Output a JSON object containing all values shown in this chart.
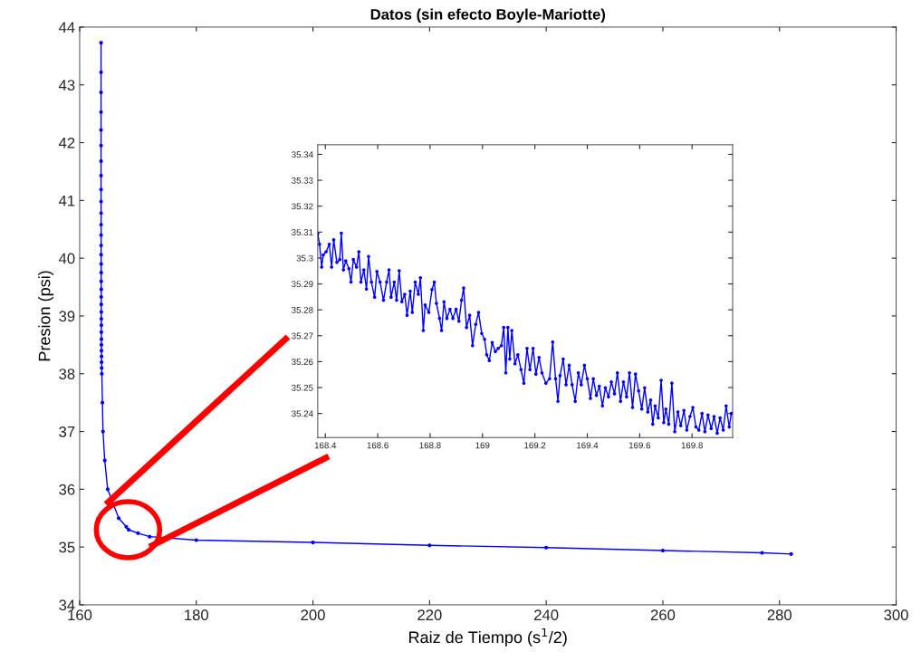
{
  "chart_data": [
    {
      "type": "line",
      "title": "Datos (sin efecto Boyle-Mariotte)",
      "xlabel": "Raiz de Tiempo (s$^{1}$/2)",
      "ylabel": "Presion (psi)",
      "xlim": [
        160,
        300
      ],
      "ylim": [
        34,
        44
      ],
      "xticks": [
        160,
        180,
        200,
        220,
        240,
        260,
        280,
        300
      ],
      "yticks": [
        34,
        35,
        36,
        37,
        38,
        39,
        40,
        41,
        42,
        43,
        44
      ],
      "grid": false,
      "marker": "circle",
      "line_style": "solid",
      "series": [
        {
          "color": "#0000ff",
          "x": [
            163.67,
            163.67,
            163.67,
            163.67,
            163.67,
            163.67,
            163.67,
            163.67,
            163.67,
            163.67,
            163.68,
            163.68,
            163.68,
            163.68,
            163.68,
            163.69,
            163.69,
            163.69,
            163.7,
            163.7,
            163.7,
            163.71,
            163.71,
            163.72,
            163.72,
            163.73,
            163.73,
            163.74,
            163.75,
            163.76,
            163.77,
            163.8,
            163.9,
            164.0,
            164.3,
            164.8,
            166.7,
            168.0,
            168.4,
            170,
            172,
            180,
            200,
            220,
            240,
            260,
            277,
            282
          ],
          "values": [
            43.73,
            43.22,
            42.87,
            42.53,
            42.22,
            41.95,
            41.68,
            41.43,
            41.19,
            40.98,
            40.78,
            40.58,
            40.4,
            40.22,
            40.06,
            39.9,
            39.75,
            39.6,
            39.46,
            39.33,
            39.2,
            39.07,
            38.95,
            38.84,
            38.72,
            38.6,
            38.5,
            38.4,
            38.3,
            38.2,
            38.1,
            38.0,
            37.5,
            37.0,
            36.5,
            36.0,
            35.5,
            35.35,
            35.3,
            35.24,
            35.18,
            35.12,
            35.08,
            35.03,
            34.99,
            34.94,
            34.9,
            34.88
          ]
        }
      ]
    },
    {
      "type": "line",
      "xlim": [
        168.371,
        169.955
      ],
      "ylim": [
        35.2307,
        35.3437
      ],
      "xticks": [
        168.4,
        168.6,
        168.8,
        169,
        169.2,
        169.4,
        169.6,
        169.8
      ],
      "yticks": [
        35.24,
        35.25,
        35.26,
        35.27,
        35.28,
        35.29,
        35.3,
        35.31,
        35.32,
        35.33,
        35.34
      ],
      "grid": false,
      "marker": "circle",
      "line_style": "solid",
      "series": [
        {
          "color": "#0000ff",
          "x": [
            168.371,
            168.378,
            168.386,
            168.392,
            168.403,
            168.415,
            168.424,
            168.432,
            168.444,
            168.455,
            168.461,
            168.469,
            168.478,
            168.49,
            168.498,
            168.507,
            168.519,
            168.528,
            168.536,
            168.547,
            168.557,
            168.565,
            168.576,
            168.588,
            168.597,
            168.609,
            168.622,
            168.634,
            168.643,
            168.651,
            168.663,
            168.672,
            168.682,
            168.692,
            168.703,
            168.712,
            168.724,
            168.732,
            168.743,
            168.755,
            168.763,
            168.774,
            168.781,
            168.795,
            168.807,
            168.816,
            168.824,
            168.836,
            168.844,
            168.853,
            168.864,
            168.876,
            168.887,
            168.899,
            168.91,
            168.92,
            168.928,
            168.939,
            168.951,
            168.962,
            168.974,
            168.985,
            168.997,
            169.008,
            169.016,
            169.026,
            169.037,
            169.049,
            169.06,
            169.072,
            169.081,
            169.089,
            169.097,
            169.104,
            169.112,
            169.124,
            169.135,
            169.147,
            169.158,
            169.17,
            169.181,
            169.193,
            169.204,
            169.216,
            169.227,
            169.242,
            169.256,
            169.268,
            169.279,
            169.288,
            169.296,
            169.308,
            169.319,
            169.331,
            169.342,
            169.354,
            169.366,
            169.377,
            169.389,
            169.4,
            169.412,
            169.423,
            169.435,
            169.446,
            169.458,
            169.469,
            169.481,
            169.492,
            169.504,
            169.515,
            169.527,
            169.538,
            169.55,
            169.561,
            169.573,
            169.584,
            169.596,
            169.608,
            169.619,
            169.631,
            169.642,
            169.65,
            169.659,
            169.671,
            169.682,
            169.692,
            169.7,
            169.711,
            169.723,
            169.734,
            169.746,
            169.757,
            169.769,
            169.78,
            169.792,
            169.803,
            169.815,
            169.826,
            169.838,
            169.849,
            169.861,
            169.873,
            169.884,
            169.896,
            169.907,
            169.919,
            169.93,
            169.942,
            169.95
          ],
          "values": [
            35.3093,
            35.3053,
            35.2965,
            35.3012,
            35.3024,
            35.3053,
            35.2965,
            35.307,
            35.2983,
            35.2994,
            35.3096,
            35.2954,
            35.2989,
            35.2959,
            35.2907,
            35.2994,
            35.2965,
            35.3024,
            35.2907,
            35.2954,
            35.288,
            35.3006,
            35.2907,
            35.2849,
            35.2948,
            35.2907,
            35.2837,
            35.2907,
            35.2954,
            35.2849,
            35.2907,
            35.2837,
            35.2951,
            35.2831,
            35.286,
            35.2779,
            35.2872,
            35.279,
            35.2907,
            35.286,
            35.2924,
            35.272,
            35.2819,
            35.279,
            35.2878,
            35.2907,
            35.2825,
            35.2767,
            35.272,
            35.2831,
            35.2767,
            35.2802,
            35.2767,
            35.2802,
            35.2756,
            35.2837,
            35.2884,
            35.2732,
            35.2779,
            35.2662,
            35.2744,
            35.279,
            35.2709,
            35.2686,
            35.2627,
            35.2604,
            35.2674,
            35.2639,
            35.2651,
            35.2662,
            35.2732,
            35.2557,
            35.2732,
            35.261,
            35.272,
            35.2592,
            35.2627,
            35.2569,
            35.2517,
            35.2651,
            35.2569,
            35.2651,
            35.2552,
            35.2616,
            35.2557,
            35.2517,
            35.2534,
            35.2676,
            35.2534,
            35.2447,
            35.2546,
            35.261,
            35.2511,
            35.2586,
            35.2511,
            35.2447,
            35.2557,
            35.2511,
            35.2586,
            35.2534,
            35.2458,
            35.2534,
            35.247,
            35.2505,
            35.2429,
            35.2499,
            35.2464,
            35.2522,
            35.2476,
            35.2557,
            35.2447,
            35.2522,
            35.2464,
            35.2557,
            35.2423,
            35.2552,
            35.2487,
            35.2417,
            35.2499,
            35.2406,
            35.2452,
            35.2359,
            35.2429,
            35.2383,
            35.2528,
            35.2365,
            35.2417,
            35.2359,
            35.2517,
            35.233,
            35.2406,
            35.2353,
            35.2412,
            35.2336,
            35.2388,
            35.2423,
            35.2348,
            35.2336,
            35.24,
            35.233,
            35.2394,
            35.2342,
            35.2388,
            35.2324,
            35.2383,
            35.2336,
            35.2429,
            35.2348,
            35.24
          ]
        }
      ]
    }
  ]
}
